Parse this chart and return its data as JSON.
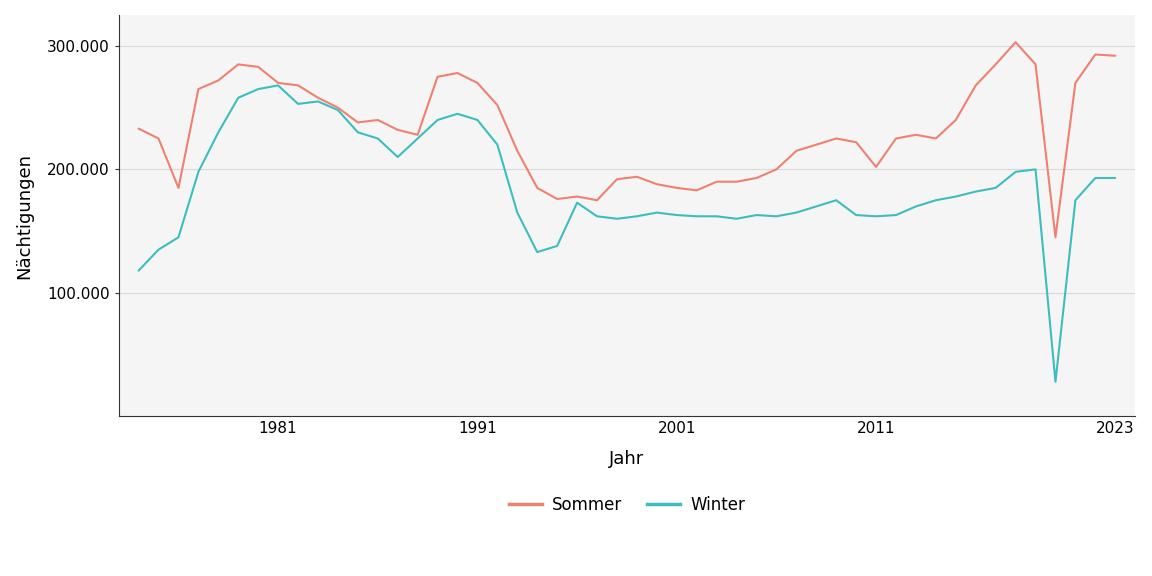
{
  "years_sommer": [
    1974,
    1975,
    1976,
    1977,
    1978,
    1979,
    1980,
    1981,
    1982,
    1983,
    1984,
    1985,
    1986,
    1987,
    1988,
    1989,
    1990,
    1991,
    1992,
    1993,
    1994,
    1995,
    1996,
    1997,
    1998,
    1999,
    2000,
    2001,
    2002,
    2003,
    2004,
    2005,
    2006,
    2007,
    2008,
    2009,
    2010,
    2011,
    2012,
    2013,
    2014,
    2015,
    2016,
    2017,
    2018,
    2019,
    2020,
    2021,
    2022,
    2023
  ],
  "sommer": [
    233000,
    225000,
    185000,
    265000,
    272000,
    285000,
    283000,
    270000,
    268000,
    258000,
    250000,
    238000,
    240000,
    232000,
    228000,
    275000,
    278000,
    270000,
    252000,
    215000,
    185000,
    176000,
    178000,
    175000,
    192000,
    194000,
    188000,
    185000,
    183000,
    190000,
    190000,
    193000,
    200000,
    215000,
    220000,
    225000,
    222000,
    202000,
    225000,
    228000,
    225000,
    240000,
    268000,
    285000,
    303000,
    285000,
    145000,
    270000,
    293000,
    292000
  ],
  "years_winter": [
    1974,
    1975,
    1976,
    1977,
    1978,
    1979,
    1980,
    1981,
    1982,
    1983,
    1984,
    1985,
    1986,
    1987,
    1988,
    1989,
    1990,
    1991,
    1992,
    1993,
    1994,
    1995,
    1996,
    1997,
    1998,
    1999,
    2000,
    2001,
    2002,
    2003,
    2004,
    2005,
    2006,
    2007,
    2008,
    2009,
    2010,
    2011,
    2012,
    2013,
    2014,
    2015,
    2016,
    2017,
    2018,
    2019,
    2020,
    2021,
    2022,
    2023
  ],
  "winter": [
    118000,
    135000,
    145000,
    198000,
    230000,
    258000,
    265000,
    268000,
    253000,
    255000,
    248000,
    230000,
    225000,
    210000,
    225000,
    240000,
    245000,
    240000,
    220000,
    165000,
    133000,
    138000,
    173000,
    162000,
    160000,
    162000,
    165000,
    163000,
    162000,
    162000,
    160000,
    163000,
    162000,
    165000,
    170000,
    175000,
    163000,
    162000,
    163000,
    170000,
    175000,
    178000,
    182000,
    185000,
    198000,
    200000,
    28000,
    175000,
    193000,
    193000
  ],
  "xlabel": "Jahr",
  "ylabel": "Nächtigungen",
  "sommer_color": "#F08070",
  "winter_color": "#3DBDBD",
  "background_color": "#ffffff",
  "panel_color": "#f5f5f5",
  "grid_color": "#d9d9d9",
  "yticks": [
    100000,
    200000,
    300000
  ],
  "ytick_labels": [
    "100.000",
    "200.000",
    "300.000"
  ],
  "xticks": [
    1981,
    1991,
    2001,
    2011,
    2023
  ],
  "legend_labels": [
    "Sommer",
    "Winter"
  ],
  "linewidth": 1.5,
  "ylim_min": 0,
  "ylim_max": 325000,
  "xlim_min": 1973,
  "xlim_max": 2024
}
